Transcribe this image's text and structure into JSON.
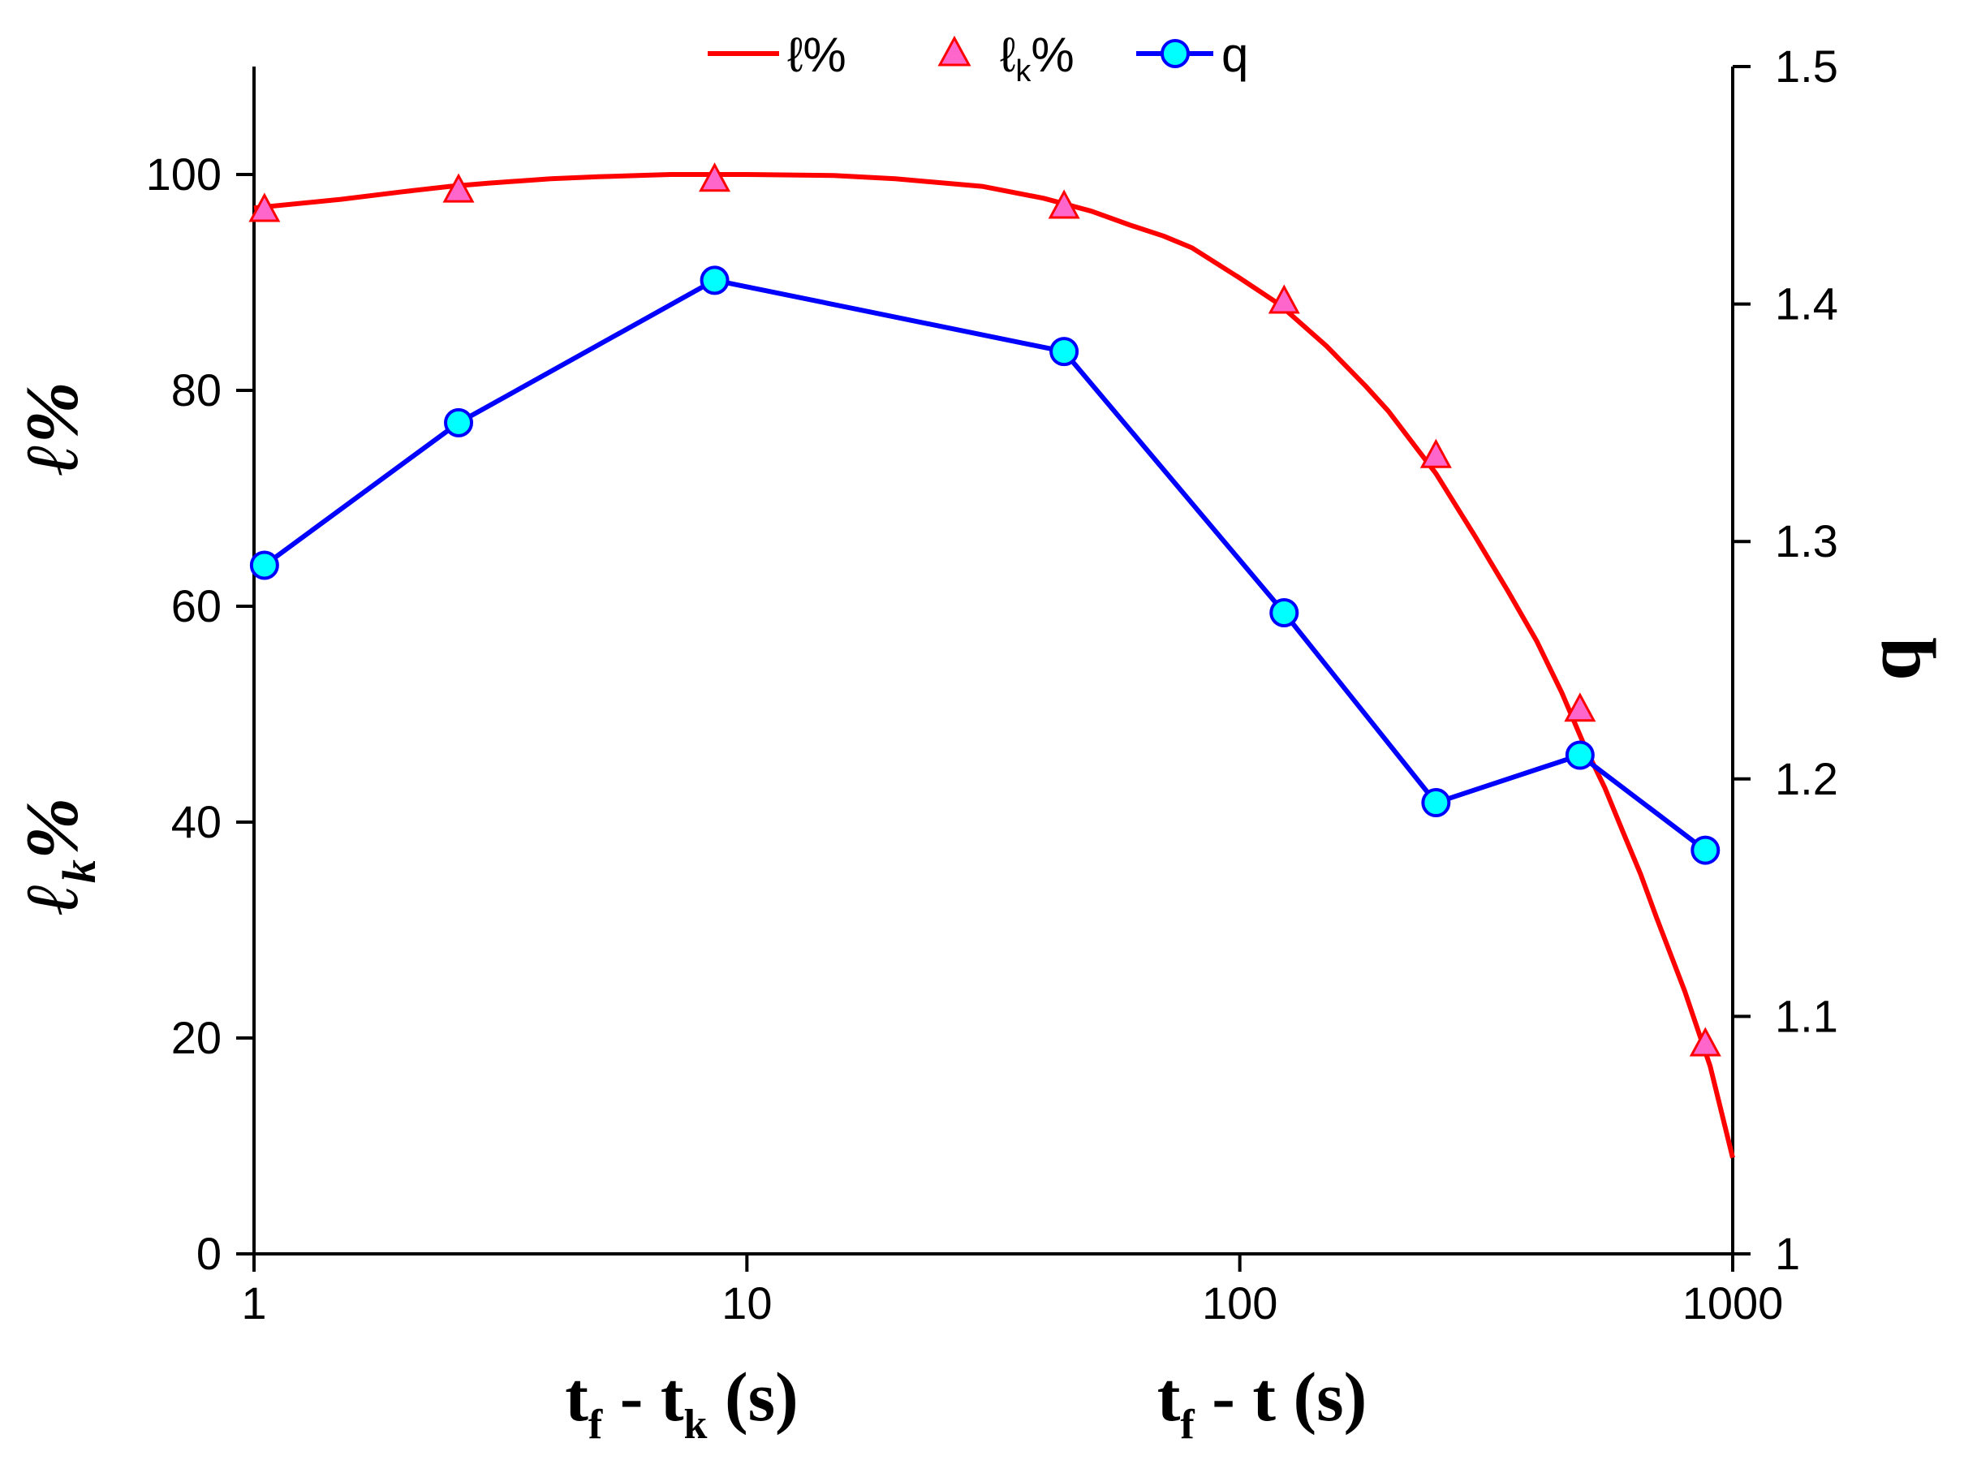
{
  "chart_data": {
    "type": "line",
    "title": "",
    "x_axis": {
      "scale": "log",
      "range": [
        1,
        1000
      ],
      "ticks": [
        "1",
        "10",
        "100",
        "1000"
      ],
      "tick_values": [
        1,
        10,
        100,
        1000
      ],
      "labels": [
        {
          "main": "t",
          "sub1": "f",
          "mid": " - t",
          "sub2": "k",
          "tail": " (s)"
        },
        {
          "main": "t",
          "sub1": "f",
          "mid": " - t",
          "sub2": "",
          "tail": " (s)"
        }
      ]
    },
    "y_left": {
      "range": [
        0,
        110
      ],
      "ticks": [
        "0",
        "20",
        "40",
        "60",
        "80",
        "100"
      ],
      "tick_values": [
        0,
        20,
        40,
        60,
        80,
        100
      ],
      "labels": [
        {
          "main": "ℓ",
          "sub": "",
          "tail": "%"
        },
        {
          "main": "ℓ",
          "sub": "k",
          "tail": "%"
        }
      ]
    },
    "y_right": {
      "range": [
        1.0,
        1.5
      ],
      "ticks": [
        "1",
        "1.1",
        "1.2",
        "1.3",
        "1.4",
        "1.5"
      ],
      "tick_values": [
        1.0,
        1.1,
        1.2,
        1.3,
        1.4,
        1.5
      ],
      "label": "q"
    },
    "grid": false,
    "legend": {
      "position": "top-center",
      "entries": [
        {
          "main": "ℓ",
          "sub": "",
          "tail": "%"
        },
        {
          "main": "ℓ",
          "sub": "k",
          "tail": "%"
        },
        {
          "main": "q",
          "sub": "",
          "tail": ""
        }
      ]
    },
    "series": [
      {
        "name": "ℓ%",
        "axis": "left",
        "style": "line",
        "color": "#ff0000",
        "x": [
          1.0,
          1.5,
          2.0,
          2.5,
          3.0,
          4.0,
          5.0,
          6.0,
          7.0,
          8.0,
          10.0,
          15.0,
          20.0,
          30.0,
          40.0,
          50.0,
          60.0,
          70.0,
          80.0,
          100.0,
          120.0,
          150.0,
          180.0,
          200.0,
          250.0,
          300.0,
          350.0,
          400.0,
          450.0,
          500.0,
          550.0,
          600.0,
          650.0,
          700.0,
          800.0,
          900.0,
          1000.0
        ],
        "y": [
          96.9,
          97.7,
          98.4,
          98.9,
          99.2,
          99.6,
          99.8,
          99.9,
          100.0,
          100.0,
          100.0,
          99.9,
          99.6,
          98.9,
          97.8,
          96.6,
          95.3,
          94.3,
          93.2,
          90.4,
          88.0,
          84.1,
          80.4,
          78.1,
          72.3,
          66.5,
          61.4,
          56.8,
          52.0,
          47.1,
          43.2,
          39.0,
          35.2,
          31.2,
          24.3,
          17.4,
          8.9
        ]
      },
      {
        "name": "ℓk%",
        "axis": "left",
        "style": "markers",
        "marker": "triangle",
        "color": "#ff0000",
        "fill": "#ff66cc",
        "x": [
          1.05,
          2.6,
          8.6,
          44.0,
          123.0,
          250.0,
          490.0,
          880.0
        ],
        "y": [
          96.8,
          98.6,
          99.6,
          97.1,
          88.3,
          74.0,
          50.5,
          19.5
        ]
      },
      {
        "name": "q",
        "axis": "right",
        "style": "line+markers",
        "marker": "circle",
        "color": "#0000ff",
        "fill": "#00ffff",
        "x": [
          1.05,
          2.6,
          8.6,
          44.0,
          123.0,
          250.0,
          490.0,
          880.0
        ],
        "y": [
          1.29,
          1.35,
          1.41,
          1.38,
          1.27,
          1.19,
          1.21,
          1.17
        ]
      }
    ]
  }
}
